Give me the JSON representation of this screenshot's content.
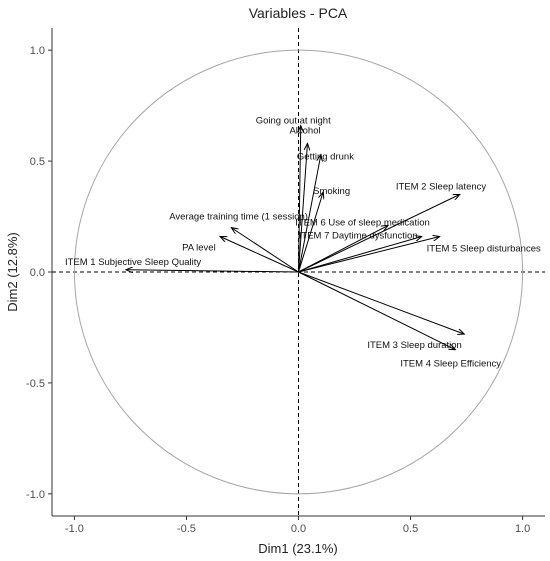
{
  "chart_data": {
    "type": "scatter",
    "title": "Variables - PCA",
    "xlabel": "Dim1 (23.1%)",
    "ylabel": "Dim2 (12.8%)",
    "xlim": [
      -1.1,
      1.1
    ],
    "ylim": [
      -1.1,
      1.1
    ],
    "x_ticks": [
      "-1.0",
      "-0.5",
      "0.0",
      "0.5",
      "1.0"
    ],
    "y_ticks": [
      "-1.0",
      "-0.5",
      "0.0",
      "0.5",
      "1.0"
    ],
    "grid": false,
    "correlation_circle": true,
    "reference_lines": [
      0,
      0
    ],
    "colors": {
      "arrow": "#000000",
      "circle": "#a6a6a6",
      "axis": "#333333"
    },
    "variables": [
      {
        "name": "Going out at night",
        "x": 0.01,
        "y": 0.66
      },
      {
        "name": "Alcohol",
        "x": 0.04,
        "y": 0.58
      },
      {
        "name": "Getting drunk",
        "x": 0.1,
        "y": 0.53
      },
      {
        "name": "Smoking",
        "x": 0.11,
        "y": 0.36
      },
      {
        "name": "ITEM 2 Sleep latency",
        "x": 0.72,
        "y": 0.35
      },
      {
        "name": "Average training time (1 session)",
        "x": -0.3,
        "y": 0.2
      },
      {
        "name": "ITEM 6 Use of sleep medication",
        "x": 0.4,
        "y": 0.21
      },
      {
        "name": "ITEM 7 Daytime dysfunction",
        "x": 0.55,
        "y": 0.16
      },
      {
        "name": "PA level",
        "x": -0.35,
        "y": 0.16
      },
      {
        "name": "ITEM 5 Sleep disturbances",
        "x": 0.63,
        "y": 0.16
      },
      {
        "name": "ITEM 1 Subjective Sleep Quality",
        "x": -0.77,
        "y": 0.01
      },
      {
        "name": "ITEM 3 Sleep duration",
        "x": 0.74,
        "y": -0.28
      },
      {
        "name": "ITEM 4 Sleep Efficiency",
        "x": 0.7,
        "y": -0.35
      }
    ]
  }
}
